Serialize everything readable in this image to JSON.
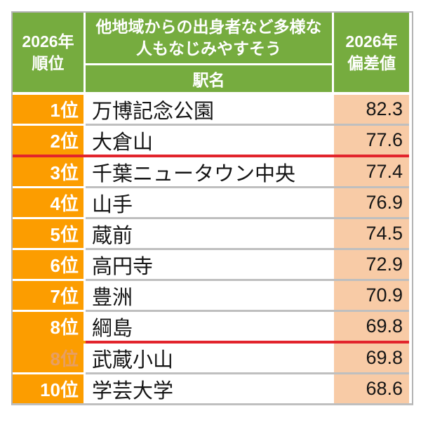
{
  "header": {
    "rank_col_line1": "2026年",
    "rank_col_line2": "順位",
    "group_title_line1": "他地域からの出身者など多様な",
    "group_title_line2": "人もなじみやすそう",
    "station_col": "駅名",
    "value_col_line1": "2026年",
    "value_col_line2": "偏差値"
  },
  "rows": [
    {
      "rank": "1位",
      "station": "万博記念公園",
      "value": "82.3",
      "rank_faded": false
    },
    {
      "rank": "2位",
      "station": "大倉山",
      "value": "77.6",
      "rank_faded": false,
      "red_line_below": "full-width"
    },
    {
      "rank": "3位",
      "station": "千葉ニュータウン中央",
      "value": "77.4",
      "rank_faded": false
    },
    {
      "rank": "4位",
      "station": "山手",
      "value": "76.9",
      "rank_faded": false
    },
    {
      "rank": "5位",
      "station": "蔵前",
      "value": "74.5",
      "rank_faded": false
    },
    {
      "rank": "6位",
      "station": "高円寺",
      "value": "72.9",
      "rank_faded": false
    },
    {
      "rank": "7位",
      "station": "豊洲",
      "value": "70.9",
      "rank_faded": false
    },
    {
      "rank": "8位",
      "station": "綱島",
      "value": "69.8",
      "rank_faded": false,
      "red_line_below": "station-and-value-columns"
    },
    {
      "rank": "8位",
      "station": "武蔵小山",
      "value": "69.8",
      "rank_faded": true
    },
    {
      "rank": "10位",
      "station": "学芸大学",
      "value": "68.6",
      "rank_faded": false
    }
  ],
  "colors": {
    "header_green": "#76ac3f",
    "rank_orange": "#fc9d00",
    "value_peach": "#f8cba6",
    "divider_red": "#e2242c",
    "border_gray": "#bfbfbf",
    "faded_rank_text": "#e79e62"
  },
  "chart_data": {
    "type": "table",
    "title": "他地域からの出身者など多様な人もなじみやすそう",
    "columns": [
      "2026年順位",
      "駅名",
      "2026年偏差値"
    ],
    "categories": [
      "万博記念公園",
      "大倉山",
      "千葉ニュータウン中央",
      "山手",
      "蔵前",
      "高円寺",
      "豊洲",
      "綱島",
      "武蔵小山",
      "学芸大学"
    ],
    "ranks": [
      "1位",
      "2位",
      "3位",
      "4位",
      "5位",
      "6位",
      "7位",
      "8位",
      "8位",
      "10位"
    ],
    "values": [
      82.3,
      77.6,
      77.4,
      76.9,
      74.5,
      72.9,
      70.9,
      69.8,
      69.8,
      68.6
    ],
    "annotations": [
      "red divider line below rank 2",
      "red divider line below rank 8 (station/value columns only)"
    ]
  }
}
